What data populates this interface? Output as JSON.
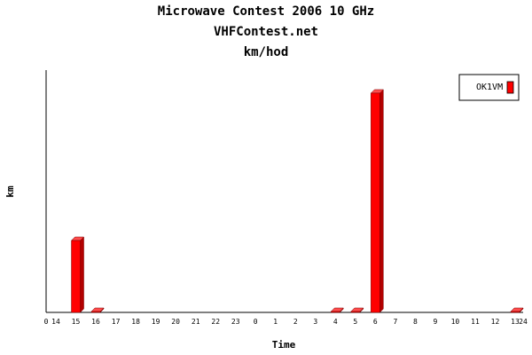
{
  "chart_data": {
    "type": "bar",
    "title": "Microwave Contest 2006 10 GHz",
    "subtitle": "VHFContest.net",
    "subtitle2": "km/hod",
    "xlabel": "Time",
    "ylabel": "km",
    "x_start_label": "0",
    "x_end_label": "24",
    "categories": [
      "14",
      "15",
      "16",
      "17",
      "18",
      "19",
      "20",
      "21",
      "22",
      "23",
      "0",
      "1",
      "2",
      "3",
      "4",
      "5",
      "6",
      "7",
      "8",
      "9",
      "10",
      "11",
      "12",
      "13"
    ],
    "series": [
      {
        "name": "OK1VM",
        "color": "#ff0000",
        "values": [
          0,
          300,
          2,
          0,
          0,
          0,
          0,
          0,
          0,
          0,
          0,
          0,
          0,
          0,
          2,
          2,
          915,
          0,
          0,
          0,
          0,
          0,
          0,
          2
        ]
      }
    ],
    "ylim": [
      0,
      1000
    ],
    "grid": false,
    "legend_position": "top-right"
  }
}
